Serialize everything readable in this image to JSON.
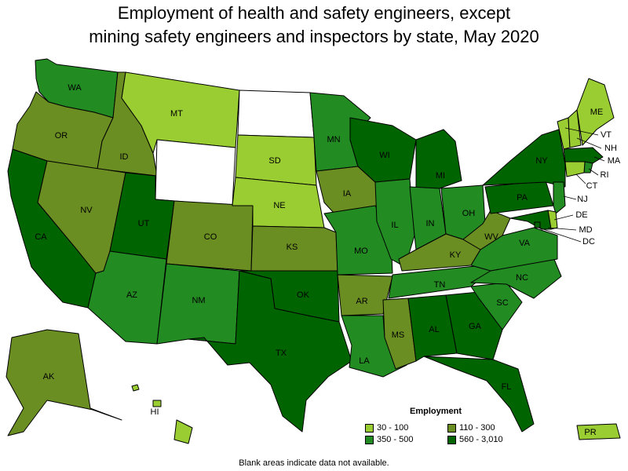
{
  "title_line1": "Employment of health and safety engineers, except",
  "title_line2": "mining safety engineers and inspectors by state, May 2020",
  "legend": {
    "title": "Employment",
    "items": [
      {
        "label": "30 - 100",
        "color": "#9acd32"
      },
      {
        "label": "110 - 300",
        "color": "#6b8e23"
      },
      {
        "label": "350 - 500",
        "color": "#228b22"
      },
      {
        "label": "560 - 3,010",
        "color": "#006400"
      }
    ]
  },
  "no_data_color": "#ffffff",
  "footnote": "Blank areas indicate data not available.",
  "states": [
    {
      "code": "WA",
      "class": "350 - 500"
    },
    {
      "code": "OR",
      "class": "110 - 300"
    },
    {
      "code": "CA",
      "class": "560 - 3,010"
    },
    {
      "code": "ID",
      "class": "110 - 300"
    },
    {
      "code": "NV",
      "class": "110 - 300"
    },
    {
      "code": "MT",
      "class": "30 - 100"
    },
    {
      "code": "WY",
      "class": "no data"
    },
    {
      "code": "UT",
      "class": "560 - 3,010"
    },
    {
      "code": "AZ",
      "class": "350 - 500"
    },
    {
      "code": "CO",
      "class": "110 - 300"
    },
    {
      "code": "NM",
      "class": "350 - 500"
    },
    {
      "code": "ND",
      "class": "no data"
    },
    {
      "code": "SD",
      "class": "30 - 100"
    },
    {
      "code": "NE",
      "class": "30 - 100"
    },
    {
      "code": "KS",
      "class": "110 - 300"
    },
    {
      "code": "OK",
      "class": "560 - 3,010"
    },
    {
      "code": "TX",
      "class": "560 - 3,010"
    },
    {
      "code": "MN",
      "class": "350 - 500"
    },
    {
      "code": "IA",
      "class": "110 - 300"
    },
    {
      "code": "MO",
      "class": "350 - 500"
    },
    {
      "code": "AR",
      "class": "110 - 300"
    },
    {
      "code": "LA",
      "class": "350 - 500"
    },
    {
      "code": "WI",
      "class": "560 - 3,010"
    },
    {
      "code": "IL",
      "class": "350 - 500"
    },
    {
      "code": "MI",
      "class": "560 - 3,010"
    },
    {
      "code": "IN",
      "class": "350 - 500"
    },
    {
      "code": "OH",
      "class": "350 - 500"
    },
    {
      "code": "KY",
      "class": "110 - 300"
    },
    {
      "code": "TN",
      "class": "350 - 500"
    },
    {
      "code": "MS",
      "class": "110 - 300"
    },
    {
      "code": "AL",
      "class": "560 - 3,010"
    },
    {
      "code": "GA",
      "class": "560 - 3,010"
    },
    {
      "code": "FL",
      "class": "560 - 3,010"
    },
    {
      "code": "SC",
      "class": "350 - 500"
    },
    {
      "code": "NC",
      "class": "350 - 500"
    },
    {
      "code": "VA",
      "class": "350 - 500"
    },
    {
      "code": "WV",
      "class": "110 - 300"
    },
    {
      "code": "PA",
      "class": "560 - 3,010"
    },
    {
      "code": "NY",
      "class": "560 - 3,010"
    },
    {
      "code": "VT",
      "class": "30 - 100"
    },
    {
      "code": "NH",
      "class": "30 - 100"
    },
    {
      "code": "ME",
      "class": "30 - 100"
    },
    {
      "code": "MA",
      "class": "560 - 3,010"
    },
    {
      "code": "RI",
      "class": "350 - 500"
    },
    {
      "code": "CT",
      "class": "30 - 100"
    },
    {
      "code": "NJ",
      "class": "350 - 500"
    },
    {
      "code": "DE",
      "class": "30 - 100"
    },
    {
      "code": "MD",
      "class": "560 - 3,010"
    },
    {
      "code": "DC",
      "class": "560 - 3,010"
    },
    {
      "code": "AK",
      "class": "110 - 300"
    },
    {
      "code": "HI",
      "class": "30 - 100"
    },
    {
      "code": "PR",
      "class": "30 - 100"
    }
  ]
}
